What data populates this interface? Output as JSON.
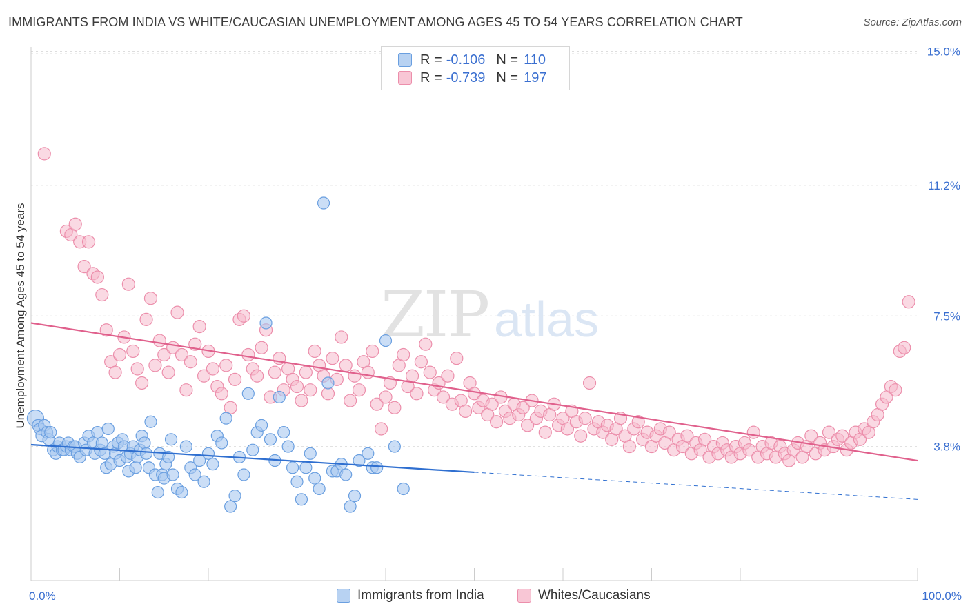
{
  "title": "IMMIGRANTS FROM INDIA VS WHITE/CAUCASIAN UNEMPLOYMENT AMONG AGES 45 TO 54 YEARS CORRELATION CHART",
  "source": "Source: ZipAtlas.com",
  "watermark": {
    "zip": "ZIP",
    "atlas": "atlas"
  },
  "colors": {
    "blue_fill": "#a9c8f0",
    "blue_stroke": "#6a9fe0",
    "blue_line": "#2f6fd0",
    "pink_fill": "#f6b9cc",
    "pink_stroke": "#ec8eab",
    "pink_line": "#e0608c",
    "tick_label": "#3a6fd0",
    "grid": "#dddddd"
  },
  "legend": {
    "rows": [
      {
        "r_label": "R =",
        "r_value": "-0.106",
        "n_label": "N =",
        "n_value": "110"
      },
      {
        "r_label": "R =",
        "r_value": "-0.739",
        "n_label": "N =",
        "n_value": "197"
      }
    ],
    "bottom": [
      "Immigrants from India",
      "Whites/Caucasians"
    ]
  },
  "chart_data": {
    "type": "scatter",
    "xlabel": "",
    "ylabel": "Unemployment Among Ages 45 to 54 years",
    "xlim": [
      0,
      100
    ],
    "ylim": [
      0,
      15.0
    ],
    "x_tick_labels": [
      "0.0%",
      "100.0%"
    ],
    "y_ticks": [
      3.8,
      7.5,
      11.2,
      15.0
    ],
    "y_tick_labels": [
      "3.8%",
      "7.5%",
      "11.2%",
      "15.0%"
    ],
    "legend_position": "top-center",
    "grid": true,
    "series": [
      {
        "name": "Immigrants from India",
        "trend": {
          "x0": 0,
          "y0": 3.85,
          "x1": 50,
          "y1": 3.07,
          "x_dash_end": 100,
          "y_dash_end": 2.3
        },
        "points": [
          [
            0.5,
            4.6
          ],
          [
            0.8,
            4.4
          ],
          [
            1.0,
            4.3
          ],
          [
            1.2,
            4.1
          ],
          [
            1.5,
            4.4
          ],
          [
            1.8,
            4.2
          ],
          [
            2.0,
            4.0
          ],
          [
            2.2,
            4.2
          ],
          [
            2.5,
            3.7
          ],
          [
            2.8,
            3.6
          ],
          [
            3.0,
            3.8
          ],
          [
            3.2,
            3.9
          ],
          [
            3.5,
            3.7
          ],
          [
            3.7,
            3.7
          ],
          [
            4.0,
            3.8
          ],
          [
            4.2,
            3.9
          ],
          [
            4.5,
            3.7
          ],
          [
            4.8,
            3.8
          ],
          [
            5.0,
            3.8
          ],
          [
            5.2,
            3.6
          ],
          [
            5.5,
            3.5
          ],
          [
            6.0,
            3.9
          ],
          [
            6.2,
            3.7
          ],
          [
            6.5,
            4.1
          ],
          [
            7.0,
            3.9
          ],
          [
            7.2,
            3.6
          ],
          [
            7.5,
            4.2
          ],
          [
            7.8,
            3.7
          ],
          [
            8.0,
            3.9
          ],
          [
            8.3,
            3.6
          ],
          [
            8.5,
            3.2
          ],
          [
            8.7,
            4.3
          ],
          [
            9.0,
            3.3
          ],
          [
            9.3,
            3.8
          ],
          [
            9.5,
            3.6
          ],
          [
            9.8,
            3.9
          ],
          [
            10.0,
            3.4
          ],
          [
            10.3,
            4.0
          ],
          [
            10.5,
            3.8
          ],
          [
            10.8,
            3.5
          ],
          [
            11.0,
            3.1
          ],
          [
            11.2,
            3.6
          ],
          [
            11.5,
            3.8
          ],
          [
            11.8,
            3.2
          ],
          [
            12.0,
            3.5
          ],
          [
            12.3,
            3.7
          ],
          [
            12.5,
            4.1
          ],
          [
            12.8,
            3.9
          ],
          [
            13.0,
            3.6
          ],
          [
            13.3,
            3.2
          ],
          [
            13.5,
            4.5
          ],
          [
            14.0,
            3.0
          ],
          [
            14.3,
            2.5
          ],
          [
            14.5,
            3.6
          ],
          [
            14.8,
            3.0
          ],
          [
            15.0,
            2.9
          ],
          [
            15.2,
            3.3
          ],
          [
            15.5,
            3.5
          ],
          [
            15.8,
            4.0
          ],
          [
            16.0,
            3.0
          ],
          [
            16.5,
            2.6
          ],
          [
            17.0,
            2.5
          ],
          [
            17.5,
            3.8
          ],
          [
            18.0,
            3.2
          ],
          [
            18.5,
            3.0
          ],
          [
            19.0,
            3.4
          ],
          [
            19.5,
            2.8
          ],
          [
            20.0,
            3.6
          ],
          [
            20.5,
            3.3
          ],
          [
            21.0,
            4.1
          ],
          [
            21.5,
            3.9
          ],
          [
            22.0,
            4.6
          ],
          [
            22.5,
            2.1
          ],
          [
            23.0,
            2.4
          ],
          [
            23.5,
            3.5
          ],
          [
            24.0,
            3.0
          ],
          [
            24.5,
            5.3
          ],
          [
            25.0,
            3.7
          ],
          [
            25.5,
            4.2
          ],
          [
            26.0,
            4.4
          ],
          [
            26.5,
            7.3
          ],
          [
            27.0,
            4.0
          ],
          [
            27.5,
            3.4
          ],
          [
            28.0,
            5.2
          ],
          [
            28.5,
            4.2
          ],
          [
            29.0,
            3.8
          ],
          [
            29.5,
            3.2
          ],
          [
            30.0,
            2.8
          ],
          [
            30.5,
            2.3
          ],
          [
            31.0,
            3.2
          ],
          [
            31.5,
            3.6
          ],
          [
            32.0,
            2.9
          ],
          [
            32.5,
            2.6
          ],
          [
            33.0,
            10.7
          ],
          [
            33.5,
            5.6
          ],
          [
            34.0,
            3.1
          ],
          [
            34.5,
            3.1
          ],
          [
            35.0,
            3.3
          ],
          [
            35.5,
            3.0
          ],
          [
            36.0,
            2.1
          ],
          [
            36.5,
            2.4
          ],
          [
            37.0,
            3.4
          ],
          [
            38.0,
            3.6
          ],
          [
            38.5,
            3.2
          ],
          [
            39.0,
            3.2
          ],
          [
            40.0,
            6.8
          ],
          [
            41.0,
            3.8
          ],
          [
            42.0,
            2.6
          ]
        ],
        "sizes_large": [
          [
            0.5,
            4.6
          ]
        ]
      },
      {
        "name": "Whites/Caucasians",
        "trend": {
          "x0": 0,
          "y0": 7.3,
          "x1": 100,
          "y1": 3.4
        },
        "points": [
          [
            1.5,
            12.1
          ],
          [
            4.0,
            9.9
          ],
          [
            4.5,
            9.8
          ],
          [
            5.0,
            10.1
          ],
          [
            5.5,
            9.6
          ],
          [
            6.0,
            8.9
          ],
          [
            6.5,
            9.6
          ],
          [
            7.0,
            8.7
          ],
          [
            7.5,
            8.6
          ],
          [
            8.0,
            8.1
          ],
          [
            8.5,
            7.1
          ],
          [
            9.0,
            6.2
          ],
          [
            9.5,
            5.9
          ],
          [
            10.0,
            6.4
          ],
          [
            10.5,
            6.9
          ],
          [
            11.0,
            8.4
          ],
          [
            11.5,
            6.5
          ],
          [
            12.0,
            6.0
          ],
          [
            12.5,
            5.6
          ],
          [
            13.0,
            7.4
          ],
          [
            13.5,
            8.0
          ],
          [
            14.0,
            6.1
          ],
          [
            14.5,
            6.8
          ],
          [
            15.0,
            6.4
          ],
          [
            15.5,
            5.9
          ],
          [
            16.0,
            6.6
          ],
          [
            16.5,
            7.6
          ],
          [
            17.0,
            6.4
          ],
          [
            17.5,
            5.4
          ],
          [
            18.0,
            6.2
          ],
          [
            18.5,
            6.7
          ],
          [
            19.0,
            7.2
          ],
          [
            19.5,
            5.8
          ],
          [
            20.0,
            6.5
          ],
          [
            20.5,
            6.0
          ],
          [
            21.0,
            5.5
          ],
          [
            21.5,
            5.3
          ],
          [
            22.0,
            6.1
          ],
          [
            22.5,
            4.9
          ],
          [
            23.0,
            5.7
          ],
          [
            23.5,
            7.4
          ],
          [
            24.0,
            7.5
          ],
          [
            24.5,
            6.4
          ],
          [
            25.0,
            6.0
          ],
          [
            25.5,
            5.8
          ],
          [
            26.0,
            6.6
          ],
          [
            26.5,
            7.1
          ],
          [
            27.0,
            5.2
          ],
          [
            27.5,
            5.9
          ],
          [
            28.0,
            6.3
          ],
          [
            28.5,
            5.4
          ],
          [
            29.0,
            6.0
          ],
          [
            29.5,
            5.7
          ],
          [
            30.0,
            5.5
          ],
          [
            30.5,
            5.1
          ],
          [
            31.0,
            5.9
          ],
          [
            31.5,
            5.4
          ],
          [
            32.0,
            6.5
          ],
          [
            32.5,
            6.1
          ],
          [
            33.0,
            5.8
          ],
          [
            33.5,
            5.3
          ],
          [
            34.0,
            6.3
          ],
          [
            34.5,
            5.7
          ],
          [
            35.0,
            6.9
          ],
          [
            35.5,
            6.1
          ],
          [
            36.0,
            5.1
          ],
          [
            36.5,
            5.8
          ],
          [
            37.0,
            5.4
          ],
          [
            37.5,
            6.2
          ],
          [
            38.0,
            5.9
          ],
          [
            38.5,
            6.5
          ],
          [
            39.0,
            5.0
          ],
          [
            39.5,
            4.3
          ],
          [
            40.0,
            5.2
          ],
          [
            40.5,
            5.6
          ],
          [
            41.0,
            4.9
          ],
          [
            41.5,
            6.1
          ],
          [
            42.0,
            6.4
          ],
          [
            42.5,
            5.5
          ],
          [
            43.0,
            5.8
          ],
          [
            43.5,
            5.3
          ],
          [
            44.0,
            6.2
          ],
          [
            44.5,
            6.7
          ],
          [
            45.0,
            5.9
          ],
          [
            45.5,
            5.4
          ],
          [
            46.0,
            5.6
          ],
          [
            46.5,
            5.2
          ],
          [
            47.0,
            5.8
          ],
          [
            47.5,
            5.0
          ],
          [
            48.0,
            6.3
          ],
          [
            48.5,
            5.1
          ],
          [
            49.0,
            4.8
          ],
          [
            49.5,
            5.6
          ],
          [
            50.0,
            5.3
          ],
          [
            50.5,
            4.9
          ],
          [
            51.0,
            5.1
          ],
          [
            51.5,
            4.7
          ],
          [
            52.0,
            5.0
          ],
          [
            52.5,
            4.5
          ],
          [
            53.0,
            5.2
          ],
          [
            53.5,
            4.8
          ],
          [
            54.0,
            4.6
          ],
          [
            54.5,
            5.0
          ],
          [
            55.0,
            4.7
          ],
          [
            55.5,
            4.9
          ],
          [
            56.0,
            4.4
          ],
          [
            56.5,
            5.1
          ],
          [
            57.0,
            4.6
          ],
          [
            57.5,
            4.8
          ],
          [
            58.0,
            4.2
          ],
          [
            58.5,
            4.7
          ],
          [
            59.0,
            5.0
          ],
          [
            59.5,
            4.4
          ],
          [
            60.0,
            4.6
          ],
          [
            60.5,
            4.3
          ],
          [
            61.0,
            4.8
          ],
          [
            61.5,
            4.5
          ],
          [
            62.0,
            4.1
          ],
          [
            62.5,
            4.6
          ],
          [
            63.0,
            5.6
          ],
          [
            63.5,
            4.3
          ],
          [
            64.0,
            4.5
          ],
          [
            64.5,
            4.2
          ],
          [
            65.0,
            4.4
          ],
          [
            65.5,
            4.0
          ],
          [
            66.0,
            4.3
          ],
          [
            66.5,
            4.6
          ],
          [
            67.0,
            4.1
          ],
          [
            67.5,
            3.8
          ],
          [
            68.0,
            4.3
          ],
          [
            68.5,
            4.5
          ],
          [
            69.0,
            4.0
          ],
          [
            69.5,
            4.2
          ],
          [
            70.0,
            3.8
          ],
          [
            70.5,
            4.1
          ],
          [
            71.0,
            4.3
          ],
          [
            71.5,
            3.9
          ],
          [
            72.0,
            4.2
          ],
          [
            72.5,
            3.7
          ],
          [
            73.0,
            4.0
          ],
          [
            73.5,
            3.8
          ],
          [
            74.0,
            4.1
          ],
          [
            74.5,
            3.6
          ],
          [
            75.0,
            3.9
          ],
          [
            75.5,
            3.7
          ],
          [
            76.0,
            4.0
          ],
          [
            76.5,
            3.5
          ],
          [
            77.0,
            3.8
          ],
          [
            77.5,
            3.6
          ],
          [
            78.0,
            3.9
          ],
          [
            78.5,
            3.7
          ],
          [
            79.0,
            3.5
          ],
          [
            79.5,
            3.8
          ],
          [
            80.0,
            3.6
          ],
          [
            80.5,
            3.9
          ],
          [
            81.0,
            3.7
          ],
          [
            81.5,
            4.2
          ],
          [
            82.0,
            3.5
          ],
          [
            82.5,
            3.8
          ],
          [
            83.0,
            3.6
          ],
          [
            83.5,
            3.9
          ],
          [
            84.0,
            3.5
          ],
          [
            84.5,
            3.8
          ],
          [
            85.0,
            3.6
          ],
          [
            85.5,
            3.4
          ],
          [
            86.0,
            3.7
          ],
          [
            86.5,
            3.9
          ],
          [
            87.0,
            3.5
          ],
          [
            87.5,
            3.8
          ],
          [
            88.0,
            4.1
          ],
          [
            88.5,
            3.6
          ],
          [
            89.0,
            3.9
          ],
          [
            89.5,
            3.7
          ],
          [
            90.0,
            4.2
          ],
          [
            90.5,
            3.8
          ],
          [
            91.0,
            4.0
          ],
          [
            91.5,
            4.1
          ],
          [
            92.0,
            3.7
          ],
          [
            92.5,
            3.9
          ],
          [
            93.0,
            4.2
          ],
          [
            93.5,
            4.0
          ],
          [
            94.0,
            4.3
          ],
          [
            94.5,
            4.2
          ],
          [
            95.0,
            4.5
          ],
          [
            95.5,
            4.7
          ],
          [
            96.0,
            5.0
          ],
          [
            96.5,
            5.2
          ],
          [
            97.0,
            5.5
          ],
          [
            97.5,
            5.4
          ],
          [
            98.0,
            6.5
          ],
          [
            98.5,
            6.6
          ],
          [
            99.0,
            7.9
          ]
        ]
      }
    ]
  }
}
